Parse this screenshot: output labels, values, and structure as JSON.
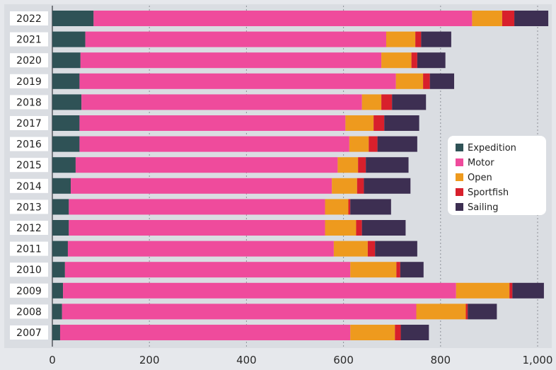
{
  "chart_data": {
    "type": "bar",
    "orientation": "horizontal",
    "stacked": true,
    "title": "",
    "xlabel": "",
    "ylabel": "",
    "xlim": [
      0,
      1000
    ],
    "x_ticks": [
      "0",
      "200",
      "400",
      "600",
      "800",
      "1,000"
    ],
    "grid": "vertical dotted",
    "categories": [
      "2022",
      "2021",
      "2020",
      "2019",
      "2018",
      "2017",
      "2016",
      "2015",
      "2014",
      "2013",
      "2012",
      "2011",
      "2010",
      "2009",
      "2008",
      "2007"
    ],
    "series": [
      {
        "name": "Expedition",
        "color": "#2f5256",
        "values": [
          85,
          68,
          58,
          56,
          60,
          56,
          56,
          48,
          38,
          34,
          34,
          32,
          26,
          22,
          20,
          16
        ]
      },
      {
        "name": "Motor",
        "color": "#ef4b9c",
        "values": [
          780,
          620,
          620,
          652,
          578,
          548,
          556,
          540,
          538,
          528,
          528,
          548,
          588,
          810,
          730,
          598
        ]
      },
      {
        "name": "Open",
        "color": "#ee9a1e",
        "values": [
          62,
          60,
          62,
          56,
          40,
          58,
          40,
          42,
          52,
          48,
          64,
          70,
          95,
          110,
          102,
          92
        ]
      },
      {
        "name": "Sportfish",
        "color": "#d8202c",
        "values": [
          25,
          12,
          12,
          14,
          22,
          22,
          18,
          16,
          14,
          4,
          12,
          15,
          8,
          6,
          4,
          12
        ]
      },
      {
        "name": "Sailing",
        "color": "#3d2f52",
        "values": [
          70,
          62,
          58,
          50,
          70,
          72,
          82,
          88,
          96,
          84,
          90,
          87,
          48,
          65,
          60,
          58
        ]
      }
    ],
    "legend": {
      "position": "right",
      "items": [
        "Expedition",
        "Motor",
        "Open",
        "Sportfish",
        "Sailing"
      ]
    }
  }
}
